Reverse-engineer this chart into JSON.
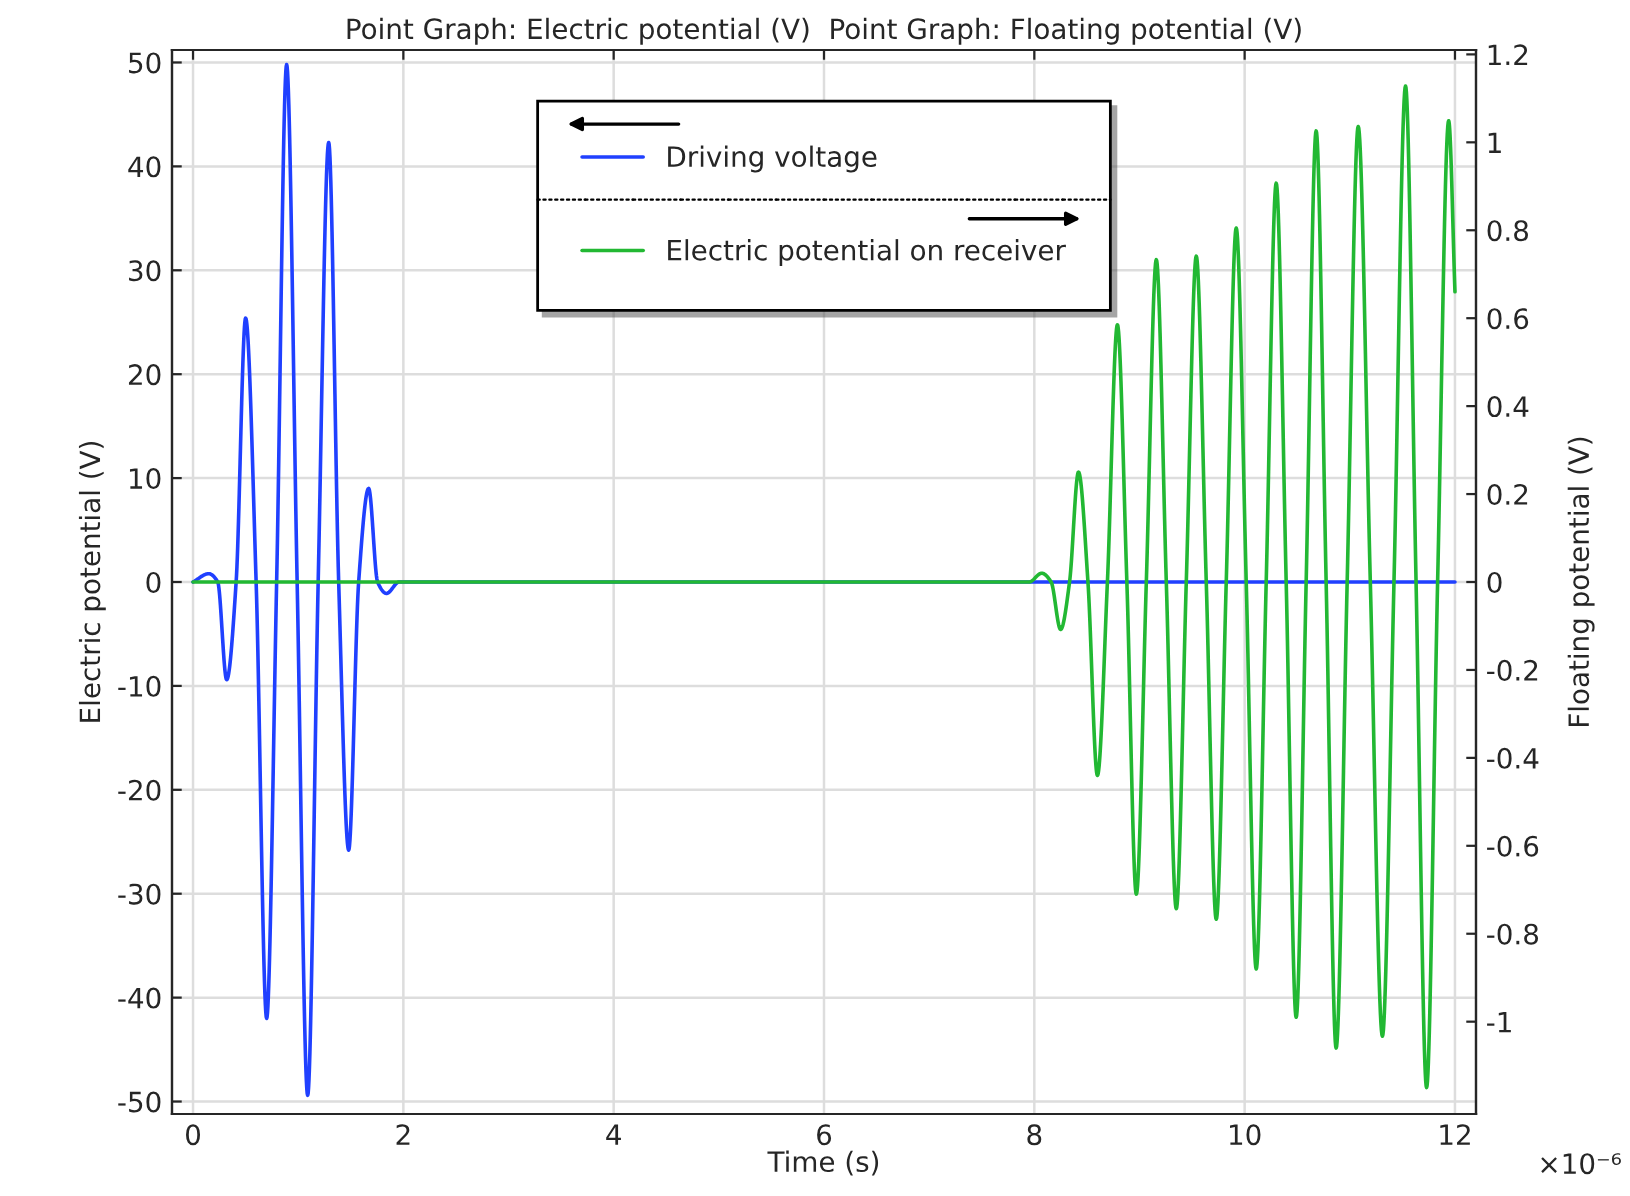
{
  "chart_data": {
    "type": "line",
    "title": "Point Graph: Electric potential (V)  Point Graph: Floating potential (V)",
    "xlabel": "Time (s)",
    "ylabel": "Electric potential (V)",
    "y2label": "Floating potential (V)",
    "xlim": [
      -0.2,
      12.2
    ],
    "xticks": [
      0,
      2,
      4,
      6,
      8,
      10,
      12
    ],
    "ylim": [
      -51.2,
      51.2
    ],
    "yticks": [
      -50,
      -40,
      -30,
      -20,
      -10,
      0,
      10,
      20,
      30,
      40,
      50
    ],
    "y2lim": [
      -1.21,
      1.21
    ],
    "y2ticks": [
      -1,
      -0.8,
      -0.6,
      -0.4,
      -0.2,
      0,
      0.2,
      0.4,
      0.6,
      0.8,
      1,
      1.2
    ],
    "grid": true,
    "legend": "top",
    "marker": "none",
    "line_style": "solid",
    "annotations": [
      "×10⁻⁶"
    ],
    "series": [
      {
        "name": "Electric potential on receiver",
        "color": "#22b833",
        "axis": "y2",
        "x": [
          0,
          7.95,
          8.07,
          8.16,
          8.25,
          8.335,
          8.42,
          8.51,
          8.6,
          8.695,
          8.79,
          8.88,
          8.97,
          9.065,
          9.16,
          9.255,
          9.35,
          9.445,
          9.54,
          9.635,
          9.73,
          9.825,
          9.92,
          10.015,
          10.11,
          10.205,
          10.3,
          10.395,
          10.49,
          10.585,
          10.68,
          10.775,
          10.87,
          10.975,
          11.08,
          11.195,
          11.31,
          11.42,
          11.53,
          11.63,
          11.73,
          11.835,
          11.94,
          12.0
        ],
        "values": [
          0,
          0,
          0.02,
          0,
          -0.108,
          0,
          0.25,
          0,
          -0.44,
          0,
          0.585,
          0,
          -0.71,
          0,
          0.733,
          0,
          -0.743,
          0,
          0.741,
          0,
          -0.767,
          0,
          0.805,
          0,
          -0.88,
          0,
          0.907,
          0,
          -0.99,
          0,
          1.026,
          0,
          -1.06,
          0,
          1.036,
          0,
          -1.033,
          0,
          1.128,
          0,
          -1.15,
          0,
          1.049,
          0.66
        ]
      },
      {
        "name": "Driving voltage",
        "color": "#2040ff",
        "axis": "y",
        "x": [
          0,
          0.15,
          0.235,
          0.32,
          0.41,
          0.5,
          0.6,
          0.7,
          0.795,
          0.89,
          0.99,
          1.09,
          1.19,
          1.29,
          1.385,
          1.48,
          1.575,
          1.67,
          1.755,
          1.84,
          1.96,
          12
        ],
        "values": [
          0,
          0.8,
          0,
          -9.4,
          0,
          25.4,
          0,
          -42,
          0,
          49.8,
          0,
          -49.4,
          0,
          42.3,
          0,
          -25.8,
          0,
          9,
          0,
          -1.1,
          0,
          0
        ]
      }
    ]
  }
}
